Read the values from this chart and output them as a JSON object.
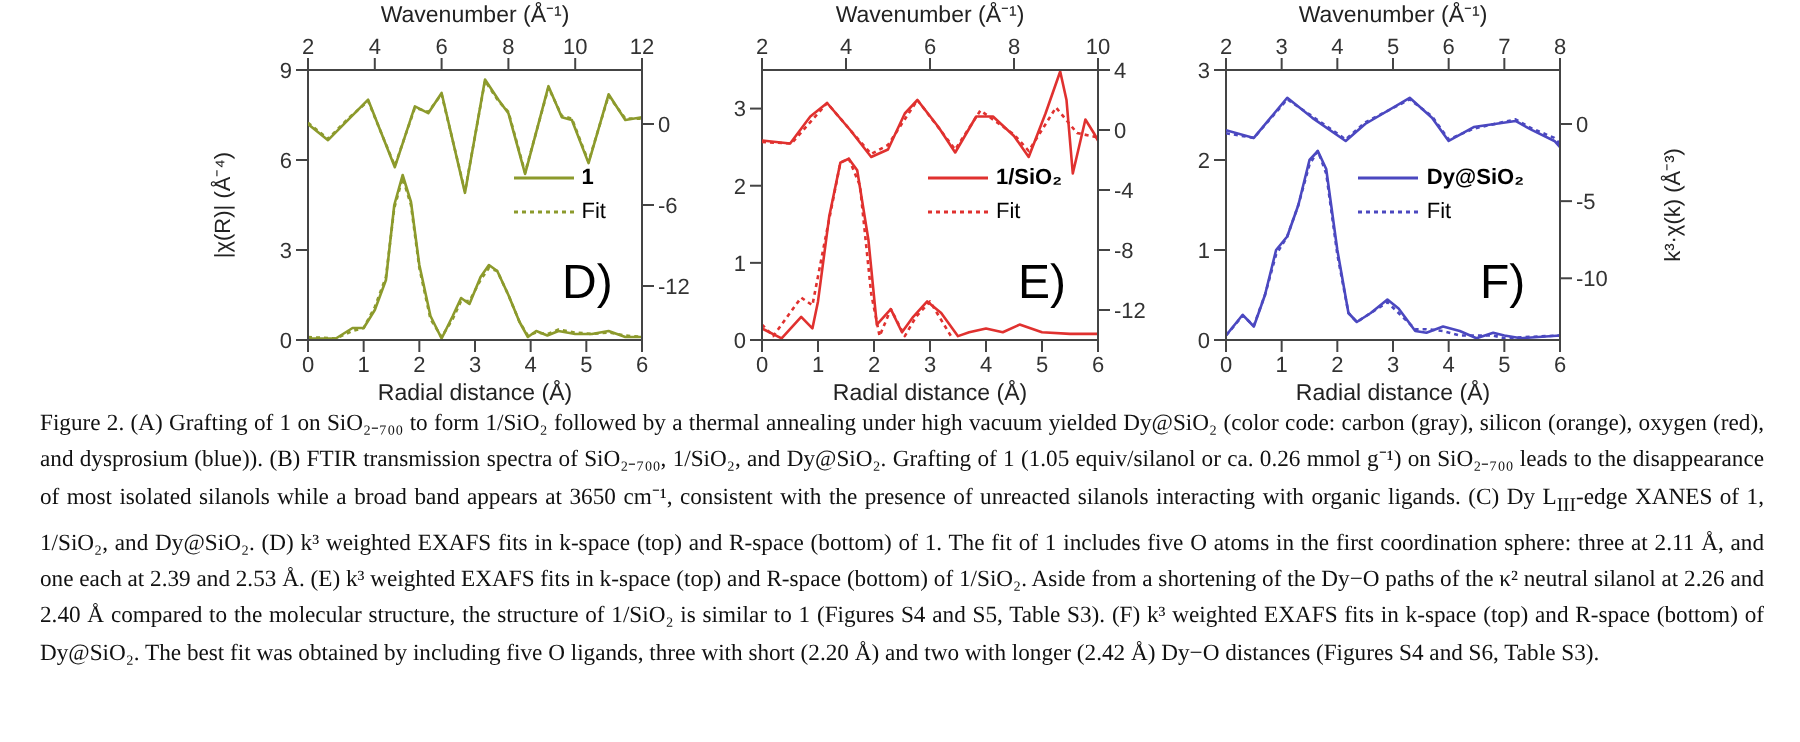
{
  "chart_data": [
    {
      "type": "line",
      "xlabel": "Radial distance (Å)",
      "ylabel": "|χ(R)| (Å⁻⁴)",
      "xlim": [
        0,
        6
      ],
      "xticks": [
        0,
        1,
        2,
        3,
        4,
        5,
        6
      ],
      "ylim": [
        0,
        9
      ],
      "yticks": [
        0,
        3,
        6,
        9
      ],
      "legend": "right",
      "annotations": [
        "D)",
        "Figure 2. (A) Grafting of 1 on SiO₂₋₇₀₀ to form 1/SiO₂ followed by a thermal annealing under high vacuum yielded Dy@SiO₂ (color code: carbon (gray), silicon (orange), oxygen (red), and dysprosium (blue)). (B) FTIR transmission spectra of SiO₂₋₇₀₀, 1/SiO₂, and Dy@SiO₂. Grafting of 1 (1.05 equiv/silanol or ca. 0.26 mmol g⁻¹) on SiO₂₋₇₀₀ leads to the disappearance of most isolated silanols while a broad band appears at 3650 cm⁻¹, consistent with the presence of unreacted silanols interacting with organic ligands. (C) Dy L$_{III}$-edge XANES of 1, 1/SiO₂, and Dy@SiO₂. (D) k³ weighted EXAFS fits in k-space (top) and R-space (bottom) of 1. The fit of 1 includes five O atoms in the first coordination sphere: three at 2.11 Å, and one each at 2.39 and 2.53 Å. (E) k³ weighted EXAFS fits in k-space (top) and R-space (bottom) of 1/SiO₂. Aside from a shortening of the Dy−O paths of the κ² neutral silanol at 2.26 and 2.40 Å compared to the molecular structure, the structure of 1/SiO₂ is similar to 1 (Figures S4 and S5, Table S3). (F) k³ weighted EXAFS fits in k-space (top) and R-space (bottom) of Dy@SiO₂. The best fit was obtained by including five O ligands, three with short (2.20 Å) and two with longer (2.42 Å) Dy−O distances (Figures S4 and S6, Table S3)."
      ],
      "series": [
        {
          "name": "1",
          "color": "#8c9a2c",
          "line_style": "solid",
          "x": [
            0,
            0.5,
            0.8,
            1.0,
            1.2,
            1.4,
            1.55,
            1.7,
            1.85,
            2.0,
            2.2,
            2.4,
            2.6,
            2.75,
            2.9,
            3.1,
            3.25,
            3.4,
            3.6,
            3.8,
            3.95,
            4.1,
            4.3,
            4.5,
            4.8,
            5.1,
            5.4,
            5.7,
            6
          ],
          "values": [
            0.05,
            0.05,
            0.4,
            0.4,
            1.0,
            2.0,
            4.5,
            5.5,
            4.6,
            2.5,
            0.8,
            0.05,
            0.8,
            1.4,
            1.2,
            2.1,
            2.5,
            2.3,
            1.5,
            0.6,
            0.1,
            0.3,
            0.15,
            0.3,
            0.2,
            0.2,
            0.3,
            0.1,
            0.1
          ]
        },
        {
          "name": "Fit",
          "color": "#8c9a2c",
          "line_style": "dotted",
          "x": [
            0,
            0.5,
            0.8,
            1.0,
            1.2,
            1.4,
            1.55,
            1.7,
            1.85,
            2.0,
            2.2,
            2.4,
            2.6,
            2.75,
            2.9,
            3.1,
            3.25,
            3.4,
            3.6,
            3.8,
            3.95,
            4.1,
            4.3,
            4.5,
            4.8,
            5.1,
            5.4,
            5.7,
            6
          ],
          "values": [
            0.1,
            0.05,
            0.3,
            0.4,
            1.1,
            2.1,
            4.4,
            5.4,
            4.5,
            2.4,
            0.7,
            0.1,
            0.7,
            1.3,
            1.3,
            2.0,
            2.4,
            2.3,
            1.5,
            0.6,
            0.15,
            0.25,
            0.2,
            0.35,
            0.25,
            0.2,
            0.25,
            0.15,
            0.1
          ]
        }
      ]
    },
    {
      "type": "line",
      "xlabel": "Wavenumber (Å⁻¹)",
      "xlim": [
        2,
        12
      ],
      "xticks": [
        2,
        4,
        6,
        8,
        10,
        12
      ],
      "ylim": [
        -16,
        4
      ],
      "yticks": [
        0,
        -6,
        -12
      ],
      "series": [
        {
          "color": "#8c9a2c",
          "line_style": "solid",
          "x": [
            2,
            2.6,
            3.2,
            3.8,
            4.6,
            5.2,
            5.6,
            6.0,
            6.7,
            7.3,
            7.7,
            8.0,
            8.5,
            9.2,
            9.6,
            9.9,
            10.4,
            11.0,
            11.5,
            12
          ],
          "values": [
            0,
            -1.2,
            0.3,
            1.8,
            -3.2,
            1.3,
            0.8,
            2.3,
            -5.1,
            3.3,
            1.8,
            0.8,
            -3.7,
            2.8,
            0.5,
            0.3,
            -2.9,
            2.2,
            0.3,
            0.5
          ]
        },
        {
          "color": "#8c9a2c",
          "line_style": "dotted",
          "x": [
            2,
            2.6,
            3.2,
            3.8,
            4.6,
            5.2,
            5.6,
            6.0,
            6.7,
            7.3,
            7.7,
            8.0,
            8.5,
            9.2,
            9.6,
            9.9,
            10.4,
            11.0,
            11.5,
            12
          ],
          "values": [
            0.1,
            -1.1,
            0.4,
            1.7,
            -3.1,
            1.2,
            0.9,
            2.2,
            -5.0,
            3.2,
            1.7,
            0.9,
            -3.6,
            2.7,
            0.6,
            0.4,
            -2.8,
            2.1,
            0.4,
            0.4
          ]
        }
      ]
    },
    {
      "type": "line",
      "xlabel": "Radial distance (Å)",
      "xlim": [
        0,
        6
      ],
      "xticks": [
        0,
        1,
        2,
        3,
        4,
        5,
        6
      ],
      "ylim": [
        0,
        3.5
      ],
      "yticks": [
        0,
        1,
        2,
        3
      ],
      "legend": "right",
      "annotations": [
        "E)"
      ],
      "series": [
        {
          "name": "1/SiO₂",
          "color": "#e0312f",
          "line_style": "solid",
          "x": [
            0,
            0.35,
            0.7,
            0.9,
            1.0,
            1.2,
            1.4,
            1.55,
            1.7,
            1.9,
            2.05,
            2.3,
            2.5,
            2.7,
            2.95,
            3.2,
            3.5,
            3.7,
            4.0,
            4.3,
            4.6,
            5.0,
            5.5,
            6
          ],
          "values": [
            0.15,
            0.02,
            0.3,
            0.15,
            0.5,
            1.6,
            2.3,
            2.35,
            2.2,
            1.3,
            0.2,
            0.4,
            0.1,
            0.3,
            0.5,
            0.35,
            0.05,
            0.1,
            0.15,
            0.1,
            0.2,
            0.1,
            0.08,
            0.08
          ]
        },
        {
          "name": "Fit",
          "color": "#e0312f",
          "line_style": "dotted",
          "x": [
            0,
            0.2,
            0.45,
            0.7,
            0.9,
            1.1,
            1.4,
            1.55,
            1.75,
            1.95,
            2.1,
            2.3,
            2.55,
            2.75,
            3.0,
            3.25,
            3.4
          ],
          "values": [
            0.2,
            0.05,
            0.3,
            0.55,
            0.45,
            1.2,
            2.3,
            2.35,
            2.0,
            0.6,
            0.05,
            0.4,
            0.05,
            0.3,
            0.5,
            0.2,
            0.02
          ]
        }
      ]
    },
    {
      "type": "line",
      "xlabel": "Wavenumber (Å⁻¹)",
      "xlim": [
        2,
        10
      ],
      "xticks": [
        2,
        4,
        6,
        8,
        10
      ],
      "ylim": [
        -14,
        4
      ],
      "yticks": [
        4,
        0,
        -4,
        -8,
        -12
      ],
      "series": [
        {
          "color": "#e0312f",
          "line_style": "solid",
          "x": [
            2,
            2.67,
            3.15,
            3.55,
            4.1,
            4.6,
            5.0,
            5.4,
            5.7,
            6.2,
            6.6,
            7.1,
            7.5,
            8.0,
            8.35,
            8.75,
            9.1,
            9.25,
            9.4,
            9.7,
            9.9,
            10
          ],
          "values": [
            -0.7,
            -0.9,
            0.9,
            1.8,
            0,
            -1.8,
            -1.3,
            1.1,
            2.0,
            0.2,
            -1.5,
            0.9,
            0.9,
            -0.4,
            -1.8,
            1.1,
            3.9,
            2.0,
            -2.9,
            0.7,
            -0.2,
            -0.7
          ]
        },
        {
          "color": "#e0312f",
          "line_style": "dotted",
          "x": [
            2,
            2.7,
            3.55,
            4.1,
            4.6,
            5.0,
            5.7,
            6.6,
            7.2,
            8.0,
            8.35,
            9.0,
            9.5,
            10
          ],
          "values": [
            -0.8,
            -0.9,
            1.8,
            0,
            -1.6,
            -1.0,
            2.0,
            -1.3,
            1.3,
            -0.3,
            -1.4,
            1.5,
            -0.2,
            -0.5
          ]
        }
      ]
    },
    {
      "type": "line",
      "xlabel": "Radial distance (Å)",
      "xlim": [
        0,
        6
      ],
      "xticks": [
        0,
        1,
        2,
        3,
        4,
        5,
        6
      ],
      "ylim": [
        0,
        3
      ],
      "yticks": [
        0,
        1,
        2,
        3
      ],
      "legend": "right",
      "annotations": [
        "F)"
      ],
      "series": [
        {
          "name": "Dy@SiO₂",
          "color": "#4b48c0",
          "line_style": "solid",
          "x": [
            0,
            0.3,
            0.5,
            0.7,
            0.9,
            1.1,
            1.3,
            1.5,
            1.65,
            1.8,
            2.0,
            2.2,
            2.35,
            2.6,
            2.9,
            3.1,
            3.4,
            3.6,
            3.9,
            4.2,
            4.5,
            4.8,
            5.0,
            5.3,
            6
          ],
          "values": [
            0.05,
            0.28,
            0.15,
            0.5,
            1.0,
            1.15,
            1.5,
            2.0,
            2.1,
            1.9,
            1.0,
            0.3,
            0.2,
            0.3,
            0.45,
            0.35,
            0.1,
            0.08,
            0.15,
            0.1,
            0.02,
            0.08,
            0.05,
            0.02,
            0.05
          ]
        },
        {
          "name": "Fit",
          "color": "#4b48c0",
          "line_style": "dotted",
          "x": [
            0,
            0.3,
            0.5,
            0.7,
            0.9,
            1.1,
            1.3,
            1.5,
            1.65,
            1.8,
            2.0,
            2.2,
            2.35,
            2.6,
            2.9,
            3.1,
            3.4,
            3.6,
            3.9,
            4.2,
            4.5,
            4.8,
            5.0,
            5.3,
            6
          ],
          "values": [
            0.05,
            0.27,
            0.16,
            0.5,
            0.95,
            1.15,
            1.5,
            1.95,
            2.1,
            1.85,
            0.95,
            0.3,
            0.2,
            0.3,
            0.42,
            0.3,
            0.12,
            0.12,
            0.1,
            0.05,
            0.05,
            0.05,
            0.02,
            0.03,
            0.05
          ]
        }
      ]
    },
    {
      "type": "line",
      "xlabel": "Wavenumber (Å⁻¹)",
      "ylabel": "k³·χ(k) (Å⁻³)",
      "xlim": [
        2,
        8
      ],
      "xticks": [
        2,
        3,
        4,
        5,
        6,
        7,
        8
      ],
      "ylim": [
        -14,
        3.5
      ],
      "yticks": [
        0,
        -5,
        -10
      ],
      "series": [
        {
          "color": "#4b48c0",
          "line_style": "solid",
          "x": [
            2,
            2.5,
            3.1,
            3.55,
            4.15,
            4.5,
            5.3,
            5.7,
            6.0,
            6.45,
            7.2,
            7.5,
            7.9,
            8
          ],
          "values": [
            -0.4,
            -0.9,
            1.7,
            0.4,
            -1.1,
            0,
            1.7,
            0.4,
            -1.1,
            -0.2,
            0.2,
            -0.4,
            -1.1,
            -1.5
          ]
        },
        {
          "color": "#4b48c0",
          "line_style": "dotted",
          "x": [
            2,
            2.5,
            3.1,
            3.55,
            4.15,
            4.5,
            5.3,
            5.7,
            6.0,
            6.45,
            7.2,
            7.5,
            7.9,
            8
          ],
          "values": [
            -0.6,
            -0.9,
            1.6,
            0.5,
            -1.0,
            0.1,
            1.6,
            0.5,
            -1.0,
            -0.3,
            0.3,
            -0.3,
            -0.9,
            -1.3
          ]
        }
      ]
    }
  ]
}
